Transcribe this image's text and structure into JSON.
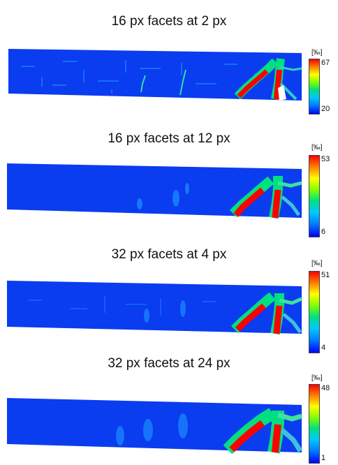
{
  "panels": [
    {
      "title": "16 px facets at 2 px",
      "unit": "[‰]",
      "max": "67",
      "min": "20"
    },
    {
      "title": "16 px facets at 12 px",
      "unit": "[‰]",
      "max": "53",
      "min": "6"
    },
    {
      "title": "32 px facets at 4 px",
      "unit": "[‰]",
      "max": "51",
      "min": "4"
    },
    {
      "title": "32 px facets at 24 px",
      "unit": "[‰]",
      "max": "48",
      "min": "1"
    }
  ],
  "colors": {
    "background": "#0a3cf0",
    "low": "#0000ff",
    "mid": "#00e080",
    "high": "#ff0000"
  }
}
